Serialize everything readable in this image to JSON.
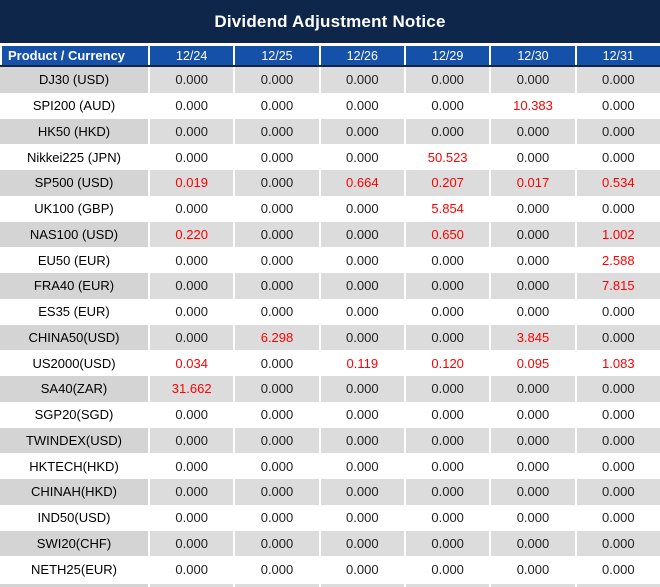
{
  "title": "Dividend Adjustment Notice",
  "colors": {
    "title_bg": "#0d2649",
    "header_bg": "#1551a8",
    "row_gray": "#dcdcdc",
    "row_gray_product": "#d4d4d4",
    "row_white": "#ffffff",
    "value_text": "#1f1f1f",
    "highlight_red": "#ff0000"
  },
  "table": {
    "header": {
      "product_col": "Product / Currency",
      "dates": [
        "12/24",
        "12/25",
        "12/26",
        "12/29",
        "12/30",
        "12/31"
      ]
    },
    "zero_value": "0.000",
    "rows": [
      {
        "product": "DJ30 (USD)",
        "values": [
          "0.000",
          "0.000",
          "0.000",
          "0.000",
          "0.000",
          "0.000"
        ]
      },
      {
        "product": "SPI200 (AUD)",
        "values": [
          "0.000",
          "0.000",
          "0.000",
          "0.000",
          "10.383",
          "0.000"
        ]
      },
      {
        "product": "HK50 (HKD)",
        "values": [
          "0.000",
          "0.000",
          "0.000",
          "0.000",
          "0.000",
          "0.000"
        ]
      },
      {
        "product": "Nikkei225 (JPN)",
        "values": [
          "0.000",
          "0.000",
          "0.000",
          "50.523",
          "0.000",
          "0.000"
        ]
      },
      {
        "product": "SP500 (USD)",
        "values": [
          "0.019",
          "0.000",
          "0.664",
          "0.207",
          "0.017",
          "0.534"
        ]
      },
      {
        "product": "UK100 (GBP)",
        "values": [
          "0.000",
          "0.000",
          "0.000",
          "5.854",
          "0.000",
          "0.000"
        ]
      },
      {
        "product": "NAS100 (USD)",
        "values": [
          "0.220",
          "0.000",
          "0.000",
          "0.650",
          "0.000",
          "1.002"
        ]
      },
      {
        "product": "EU50 (EUR)",
        "values": [
          "0.000",
          "0.000",
          "0.000",
          "0.000",
          "0.000",
          "2.588"
        ]
      },
      {
        "product": "FRA40 (EUR)",
        "values": [
          "0.000",
          "0.000",
          "0.000",
          "0.000",
          "0.000",
          "7.815"
        ]
      },
      {
        "product": "ES35 (EUR)",
        "values": [
          "0.000",
          "0.000",
          "0.000",
          "0.000",
          "0.000",
          "0.000"
        ]
      },
      {
        "product": "CHINA50(USD)",
        "values": [
          "0.000",
          "6.298",
          "0.000",
          "0.000",
          "3.845",
          "0.000"
        ]
      },
      {
        "product": "US2000(USD)",
        "values": [
          "0.034",
          "0.000",
          "0.119",
          "0.120",
          "0.095",
          "1.083"
        ]
      },
      {
        "product": "SA40(ZAR)",
        "values": [
          "31.662",
          "0.000",
          "0.000",
          "0.000",
          "0.000",
          "0.000"
        ]
      },
      {
        "product": "SGP20(SGD)",
        "values": [
          "0.000",
          "0.000",
          "0.000",
          "0.000",
          "0.000",
          "0.000"
        ]
      },
      {
        "product": "TWINDEX(USD)",
        "values": [
          "0.000",
          "0.000",
          "0.000",
          "0.000",
          "0.000",
          "0.000"
        ]
      },
      {
        "product": "HKTECH(HKD)",
        "values": [
          "0.000",
          "0.000",
          "0.000",
          "0.000",
          "0.000",
          "0.000"
        ]
      },
      {
        "product": "CHINAH(HKD)",
        "values": [
          "0.000",
          "0.000",
          "0.000",
          "0.000",
          "0.000",
          "0.000"
        ]
      },
      {
        "product": "IND50(USD)",
        "values": [
          "0.000",
          "0.000",
          "0.000",
          "0.000",
          "0.000",
          "0.000"
        ]
      },
      {
        "product": "SWI20(CHF)",
        "values": [
          "0.000",
          "0.000",
          "0.000",
          "0.000",
          "0.000",
          "0.000"
        ]
      },
      {
        "product": "NETH25(EUR)",
        "values": [
          "0.000",
          "0.000",
          "0.000",
          "0.000",
          "0.000",
          "0.000"
        ]
      }
    ]
  }
}
